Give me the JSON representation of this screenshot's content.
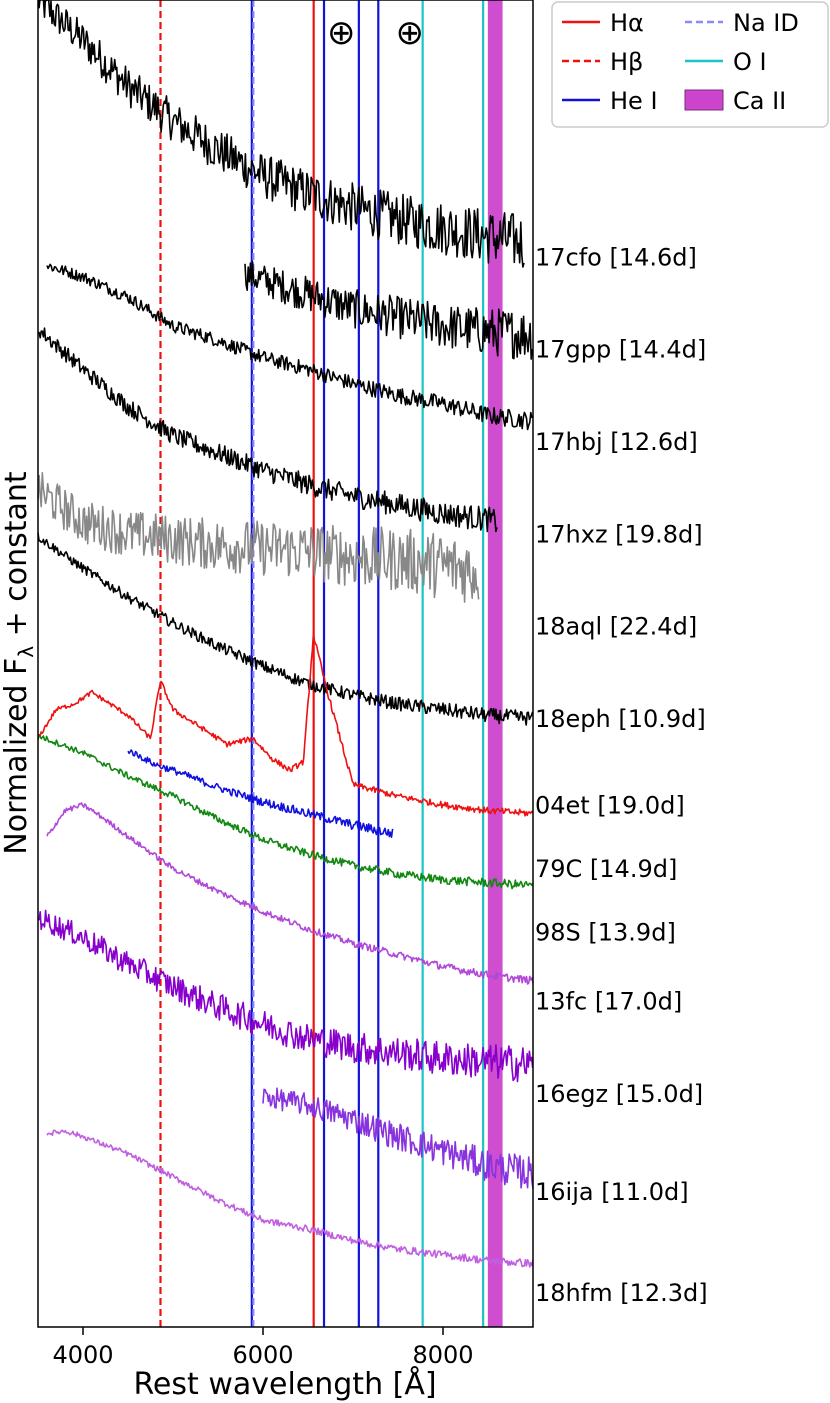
{
  "chart_data": {
    "type": "line",
    "xlabel": "Rest wavelength [Å]",
    "ylabel": "Normalized F",
    "ylabel_sub": "λ",
    "ylabel_tail": " + constant",
    "xlim": [
      3500,
      9000
    ],
    "xticks": [
      4000,
      6000,
      8000
    ],
    "xtick_labels": [
      "4000",
      "6000",
      "8000"
    ],
    "yticks_shown": false,
    "telluric_markers": [
      {
        "symbol": "⊕",
        "x": 6870
      },
      {
        "symbol": "⊕",
        "x": 7630
      }
    ],
    "lines": [
      {
        "name": "Hα",
        "wavelengths": [
          6563
        ],
        "color": "#ee1111",
        "style": "solid"
      },
      {
        "name": "Hβ",
        "wavelengths": [
          4861
        ],
        "color": "#ee1111",
        "style": "dashed"
      },
      {
        "name": "He I",
        "wavelengths": [
          5876,
          6678,
          7065,
          7281
        ],
        "color": "#1111dd",
        "style": "solid"
      },
      {
        "name": "Na ID",
        "wavelengths": [
          5893
        ],
        "color": "#8a8aff",
        "style": "dashed"
      },
      {
        "name": "O I",
        "wavelengths": [
          7774,
          8446
        ],
        "color": "#1cc4c4",
        "style": "solid"
      },
      {
        "name": "Ca II",
        "band": [
          8498,
          8662
        ],
        "color": "#cc44cc",
        "style": "band"
      }
    ],
    "legend": {
      "placement": "top-right",
      "entries": [
        {
          "label": "Hα",
          "color": "#ee1111",
          "style": "solid"
        },
        {
          "label": "Na ID",
          "color": "#8a8aff",
          "style": "dashed"
        },
        {
          "label": "Hβ",
          "color": "#ee1111",
          "style": "dashed"
        },
        {
          "label": "O I",
          "color": "#1cc4c4",
          "style": "solid"
        },
        {
          "label": "He I",
          "color": "#1111dd",
          "style": "solid"
        },
        {
          "label": "Ca II",
          "color": "#cc44cc",
          "style": "band"
        }
      ]
    },
    "series": [
      {
        "name": "17cfo [14.6d]",
        "color": "#000000",
        "noise": 0.5,
        "x": [
          3500,
          4000,
          4500,
          5000,
          5500,
          6000,
          6500,
          7000,
          7500,
          8000,
          8500,
          8900
        ],
        "y": [
          18.1,
          17.4,
          16.6,
          16.0,
          15.5,
          15.05,
          14.75,
          14.5,
          14.3,
          14.15,
          14.0,
          13.9
        ]
      },
      {
        "name": "17gpp [14.4d]",
        "color": "#000000",
        "noise": 0.45,
        "x": [
          5800,
          6000,
          6500,
          7000,
          7500,
          8000,
          8500,
          9000
        ],
        "y": [
          13.35,
          13.25,
          13.0,
          12.75,
          12.6,
          12.45,
          12.35,
          12.3
        ]
      },
      {
        "name": "17hbj [12.6d]",
        "color": "#000000",
        "noise": 0.16,
        "x": [
          3600,
          4000,
          4500,
          5000,
          5500,
          6000,
          6500,
          7000,
          7500,
          8000,
          8500,
          9000
        ],
        "y": [
          13.5,
          13.3,
          12.95,
          12.45,
          12.2,
          11.9,
          11.7,
          11.45,
          11.25,
          11.1,
          10.9,
          10.8
        ]
      },
      {
        "name": "17hxz [19.8d]",
        "color": "#000000",
        "noise": 0.22,
        "x": [
          3500,
          4000,
          4500,
          5000,
          5500,
          6000,
          6500,
          7000,
          7500,
          8000,
          8500,
          8600
        ],
        "y": [
          12.4,
          11.7,
          11.05,
          10.55,
          10.25,
          9.95,
          9.7,
          9.5,
          9.35,
          9.2,
          9.1,
          9.05
        ]
      },
      {
        "name": "18aql [22.4d]",
        "color": "#888888",
        "noise": 0.6,
        "x": [
          3500,
          4000,
          4500,
          5000,
          5500,
          6000,
          6500,
          7000,
          7500,
          8000,
          8400
        ],
        "y": [
          9.6,
          9.05,
          8.85,
          8.75,
          8.65,
          8.6,
          8.55,
          8.45,
          8.4,
          8.3,
          8.2
        ]
      },
      {
        "name": "18eph [10.9d]",
        "color": "#000000",
        "noise": 0.13,
        "x": [
          3500,
          4000,
          4500,
          5000,
          5500,
          6000,
          6500,
          7000,
          7500,
          8000,
          8500,
          9000
        ],
        "y": [
          8.8,
          8.25,
          7.75,
          7.3,
          6.9,
          6.55,
          6.25,
          6.05,
          5.9,
          5.8,
          5.7,
          5.65
        ]
      },
      {
        "name": "04et [19.0d]",
        "color": "#ee1111",
        "noise": 0.06,
        "x": [
          3500,
          3700,
          3900,
          4100,
          4300,
          4500,
          4750,
          4860,
          5000,
          5300,
          5600,
          5890,
          6100,
          6300,
          6450,
          6560,
          6700,
          7000,
          7500,
          8000,
          8500,
          9000
        ],
        "y": [
          5.3,
          5.8,
          5.9,
          6.1,
          5.9,
          5.7,
          5.3,
          6.3,
          5.8,
          5.5,
          5.2,
          5.3,
          4.95,
          4.75,
          4.9,
          7.1,
          6.2,
          4.5,
          4.3,
          4.15,
          4.05,
          4.0
        ]
      },
      {
        "name": "79C [14.9d]",
        "color": "#1111dd",
        "noise": 0.09,
        "x": [
          4500,
          4800,
          5000,
          5500,
          6000,
          6500,
          7000,
          7450
        ],
        "y": [
          5.1,
          4.85,
          4.75,
          4.45,
          4.2,
          4.0,
          3.8,
          3.65
        ]
      },
      {
        "name": "98S [13.9d]",
        "color": "#118811",
        "noise": 0.08,
        "x": [
          3500,
          4000,
          4500,
          5000,
          5500,
          6000,
          6500,
          7000,
          7500,
          8000,
          8500,
          9000
        ],
        "y": [
          5.35,
          5.05,
          4.65,
          4.3,
          3.9,
          3.55,
          3.3,
          3.1,
          2.95,
          2.85,
          2.8,
          2.75
        ]
      },
      {
        "name": "13fc [17.0d]",
        "color": "#b048d8",
        "noise": 0.07,
        "x": [
          3600,
          3800,
          4000,
          4200,
          4500,
          5000,
          5500,
          6000,
          6500,
          7000,
          7500,
          8000,
          8500,
          9000
        ],
        "y": [
          3.6,
          4.05,
          4.15,
          3.95,
          3.6,
          3.05,
          2.65,
          2.3,
          2.0,
          1.75,
          1.55,
          1.35,
          1.2,
          1.1
        ]
      },
      {
        "name": "16egz [15.0d]",
        "color": "#8800cc",
        "noise": 0.32,
        "x": [
          3500,
          4000,
          4500,
          5000,
          5500,
          6000,
          6500,
          7000,
          7500,
          8000,
          8500,
          9000
        ],
        "y": [
          2.2,
          1.85,
          1.4,
          1.0,
          0.65,
          0.35,
          0.1,
          -0.05,
          -0.15,
          -0.25,
          -0.3,
          -0.35
        ]
      },
      {
        "name": "16ija [11.0d]",
        "color": "#8833dd",
        "noise": 0.3,
        "x": [
          6000,
          6500,
          7000,
          7500,
          8000,
          8500,
          9000
        ],
        "y": [
          -0.9,
          -1.05,
          -1.3,
          -1.6,
          -1.85,
          -2.1,
          -2.25
        ]
      },
      {
        "name": "18hfm [12.3d]",
        "color": "#c060e0",
        "noise": 0.07,
        "x": [
          3600,
          3800,
          4000,
          4500,
          5000,
          5500,
          6000,
          6500,
          7000,
          7500,
          8000,
          8500,
          9000
        ],
        "y": [
          -1.55,
          -1.5,
          -1.6,
          -1.9,
          -2.3,
          -2.7,
          -3.05,
          -3.2,
          -3.4,
          -3.55,
          -3.65,
          -3.75,
          -3.8
        ]
      }
    ],
    "labels": [
      {
        "text": "17cfo [14.6d]",
        "y": 13.5
      },
      {
        "text": "17gpp [14.4d]",
        "y": 11.9
      },
      {
        "text": "17hbj [12.6d]",
        "y": 10.3
      },
      {
        "text": "17hxz [19.8d]",
        "y": 8.7
      },
      {
        "text": "18aql [22.4d]",
        "y": 7.1
      },
      {
        "text": "18eph [10.9d]",
        "y": 5.5
      },
      {
        "text": "04et [19.0d]",
        "y": 4.0
      },
      {
        "text": "79C [14.9d]",
        "y": 2.9
      },
      {
        "text": "98S [13.9d]",
        "y": 1.8
      },
      {
        "text": "13fc [17.0d]",
        "y": 0.6
      },
      {
        "text": "16egz [15.0d]",
        "y": -1.0
      },
      {
        "text": "16ija [11.0d]",
        "y": -2.7
      },
      {
        "text": "18hfm [12.3d]",
        "y": -4.45
      }
    ],
    "ylim": [
      -4.9,
      18.1
    ]
  }
}
